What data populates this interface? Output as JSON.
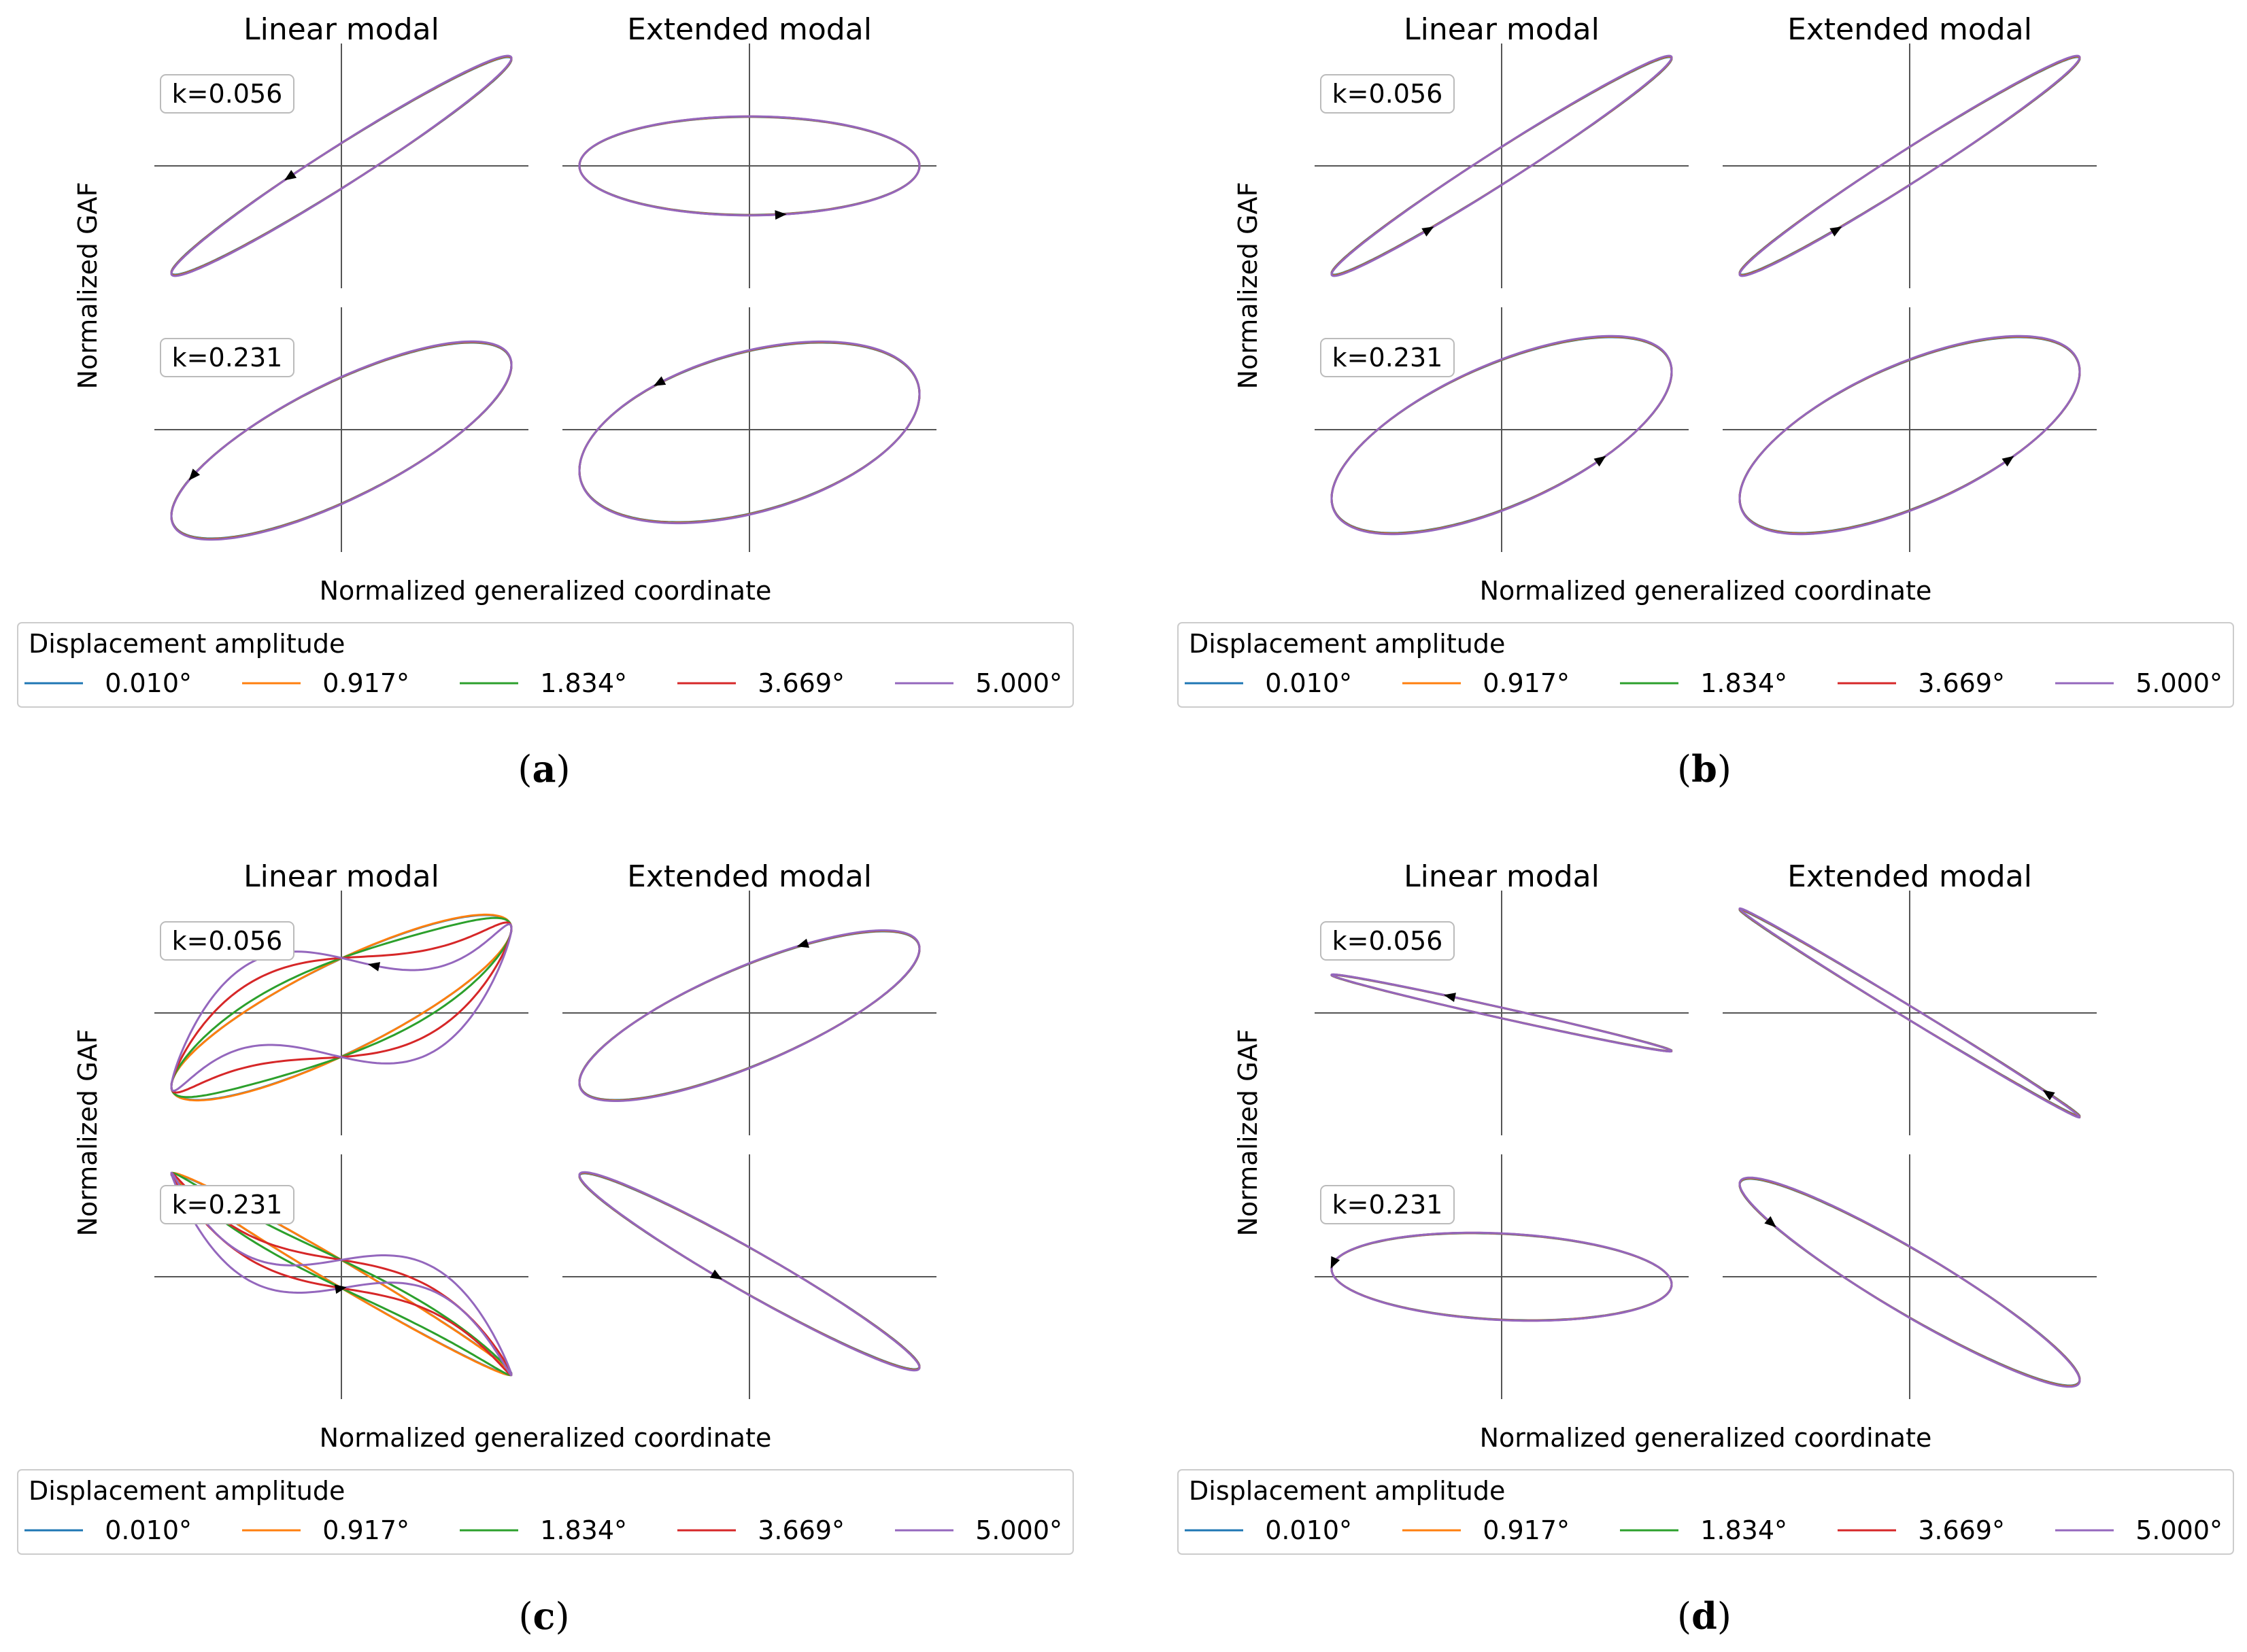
{
  "chart_data": [
    {
      "panel_label": "a",
      "type": "line",
      "column_titles": [
        "Linear modal",
        "Extended modal"
      ],
      "row_labels": [
        "k=0.056",
        "k=0.231"
      ],
      "xlabel": "Normalized generalized coordinate",
      "ylabel": "Normalized GAF",
      "legend_title": "Displacement amplitude",
      "series": [
        {
          "name": "0.010°",
          "color": "#1f77b4"
        },
        {
          "name": "0.917°",
          "color": "#ff7f0e"
        },
        {
          "name": "1.834°",
          "color": "#2ca02c"
        },
        {
          "name": "3.669°",
          "color": "#d62728"
        },
        {
          "name": "5.000°",
          "color": "#9467bd"
        }
      ],
      "loops": {
        "r0c0": {
          "kind": "ellipse",
          "x": [
            -1,
            1
          ],
          "y": [
            -1,
            1
          ],
          "phase_deg": 12,
          "arrow_t": 0.3
        },
        "r0c1": {
          "kind": "ellipse",
          "x": [
            -1,
            1
          ],
          "y": [
            -0.45,
            0.45
          ],
          "phase_deg": 90,
          "arrow_t": 0.78
        },
        "r1c0": {
          "kind": "ellipse",
          "x": [
            -1,
            1
          ],
          "y": [
            -1,
            0.8
          ],
          "phase_deg": 40,
          "arrow_t": 0.42
        },
        "r1c1": {
          "kind": "ellipse",
          "x": [
            -1,
            1
          ],
          "y": [
            -0.85,
            0.8
          ],
          "phase_deg": 65,
          "arrow_t": 0.34
        }
      }
    },
    {
      "panel_label": "b",
      "type": "line",
      "column_titles": [
        "Linear modal",
        "Extended modal"
      ],
      "row_labels": [
        "k=0.056",
        "k=0.231"
      ],
      "xlabel": "Normalized generalized coordinate",
      "ylabel": "Normalized GAF",
      "legend_title": "Displacement amplitude",
      "series": [
        {
          "name": "0.010°",
          "color": "#1f77b4"
        },
        {
          "name": "0.917°",
          "color": "#ff7f0e"
        },
        {
          "name": "1.834°",
          "color": "#2ca02c"
        },
        {
          "name": "3.669°",
          "color": "#d62728"
        },
        {
          "name": "5.000°",
          "color": "#9467bd"
        }
      ],
      "loops": {
        "r0c0": {
          "kind": "ellipse",
          "x": [
            -1,
            1
          ],
          "y": [
            -1,
            1
          ],
          "phase_deg": 10,
          "arrow_t": 0.68
        },
        "r0c1": {
          "kind": "ellipse",
          "x": [
            -1,
            1
          ],
          "y": [
            -1,
            1
          ],
          "phase_deg": 10,
          "arrow_t": 0.68
        },
        "r1c0": {
          "kind": "ellipse",
          "x": [
            -1,
            1
          ],
          "y": [
            -0.95,
            0.85
          ],
          "phase_deg": 50,
          "arrow_t": 0.85
        },
        "r1c1": {
          "kind": "ellipse",
          "x": [
            -1,
            1
          ],
          "y": [
            -0.95,
            0.85
          ],
          "phase_deg": 50,
          "arrow_t": 0.85
        }
      }
    },
    {
      "panel_label": "c",
      "type": "line",
      "column_titles": [
        "Linear modal",
        "Extended modal"
      ],
      "row_labels": [
        "k=0.056",
        "k=0.231"
      ],
      "xlabel": "Normalized generalized coordinate",
      "ylabel": "Normalized GAF",
      "legend_title": "Displacement amplitude",
      "series": [
        {
          "name": "0.010°",
          "color": "#1f77b4"
        },
        {
          "name": "0.917°",
          "color": "#ff7f0e"
        },
        {
          "name": "1.834°",
          "color": "#2ca02c"
        },
        {
          "name": "3.669°",
          "color": "#d62728"
        },
        {
          "name": "5.000°",
          "color": "#9467bd"
        }
      ],
      "loops": {
        "r0c0": {
          "kind": "cubic",
          "x": [
            -1,
            1
          ],
          "y": [
            -0.8,
            0.9
          ],
          "phase_deg": 32,
          "c3": [
            0,
            0,
            0.12,
            0.45,
            0.8
          ],
          "arrow_t": 0.22
        },
        "r0c1": {
          "kind": "ellipse",
          "x": [
            -1,
            1
          ],
          "y": [
            -0.8,
            0.75
          ],
          "phase_deg": 38,
          "arrow_t": 0.2
        },
        "r1c0": {
          "kind": "cubic",
          "x": [
            -1,
            1
          ],
          "y": [
            -0.9,
            0.95
          ],
          "phase_deg": 172,
          "c3": [
            0,
            0,
            0.12,
            0.45,
            0.8
          ],
          "arrow_t": 0.75
        },
        "r1c1": {
          "kind": "ellipse",
          "x": [
            -1,
            1
          ],
          "y": [
            -0.85,
            0.95
          ],
          "phase_deg": 166,
          "arrow_t": 0.72
        }
      }
    },
    {
      "panel_label": "d",
      "type": "line",
      "column_titles": [
        "Linear modal",
        "Extended modal"
      ],
      "row_labels": [
        "k=0.056",
        "k=0.231"
      ],
      "xlabel": "Normalized generalized coordinate",
      "ylabel": "Normalized GAF",
      "legend_title": "Displacement amplitude",
      "series": [
        {
          "name": "0.010°",
          "color": "#1f77b4"
        },
        {
          "name": "0.917°",
          "color": "#ff7f0e"
        },
        {
          "name": "1.834°",
          "color": "#2ca02c"
        },
        {
          "name": "3.669°",
          "color": "#d62728"
        },
        {
          "name": "5.000°",
          "color": "#9467bd"
        }
      ],
      "loops": {
        "r0c0": {
          "kind": "ellipse",
          "x": [
            -1,
            1
          ],
          "y": [
            -0.35,
            0.35
          ],
          "phase_deg": 172,
          "arrow_t": 0.3
        },
        "r0c1": {
          "kind": "ellipse",
          "x": [
            -1,
            1
          ],
          "y": [
            -0.95,
            0.95
          ],
          "phase_deg": 176,
          "arrow_t": 0.1
        },
        "r1c0": {
          "kind": "ellipse",
          "x": [
            -1,
            1
          ],
          "y": [
            -0.4,
            0.4
          ],
          "phase_deg": 100,
          "arrow_t": 0.48
        },
        "r1c1": {
          "kind": "ellipse",
          "x": [
            -1,
            1
          ],
          "y": [
            -1,
            0.9
          ],
          "phase_deg": 160,
          "arrow_t": 0.6
        }
      }
    }
  ]
}
